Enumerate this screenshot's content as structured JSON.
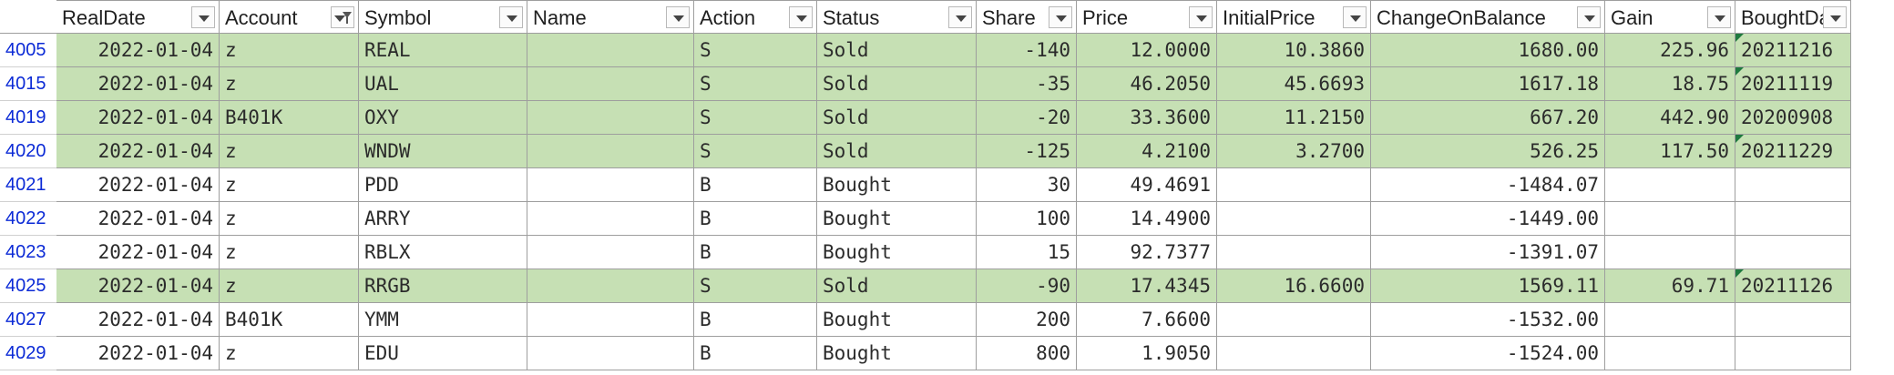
{
  "columns": [
    "RealDate",
    "Account",
    "Symbol",
    "Name",
    "Action",
    "Status",
    "Share",
    "Price",
    "InitialPrice",
    "ChangeOnBalance",
    "Gain",
    "BoughtDate"
  ],
  "rows": [
    {
      "num": "4005",
      "sold": true,
      "c": [
        "2022-01-04",
        "z",
        "REAL",
        "",
        "S",
        "Sold",
        "-140",
        "12.0000",
        "10.3860",
        "1680.00",
        "225.96",
        "20211216"
      ],
      "tri": true
    },
    {
      "num": "4015",
      "sold": true,
      "c": [
        "2022-01-04",
        "z",
        "UAL",
        "",
        "S",
        "Sold",
        "-35",
        "46.2050",
        "45.6693",
        "1617.18",
        "18.75",
        "20211119"
      ],
      "tri": true
    },
    {
      "num": "4019",
      "sold": true,
      "c": [
        "2022-01-04",
        "B401K",
        "OXY",
        "",
        "S",
        "Sold",
        "-20",
        "33.3600",
        "11.2150",
        "667.20",
        "442.90",
        "20200908"
      ],
      "tri": false
    },
    {
      "num": "4020",
      "sold": true,
      "c": [
        "2022-01-04",
        "z",
        "WNDW",
        "",
        "S",
        "Sold",
        "-125",
        "4.2100",
        "3.2700",
        "526.25",
        "117.50",
        "20211229"
      ],
      "tri": true
    },
    {
      "num": "4021",
      "sold": false,
      "c": [
        "2022-01-04",
        "z",
        "PDD",
        "",
        "B",
        "Bought",
        "30",
        "49.4691",
        "",
        "-1484.07",
        "",
        ""
      ],
      "tri": false
    },
    {
      "num": "4022",
      "sold": false,
      "c": [
        "2022-01-04",
        "z",
        "ARRY",
        "",
        "B",
        "Bought",
        "100",
        "14.4900",
        "",
        "-1449.00",
        "",
        ""
      ],
      "tri": false
    },
    {
      "num": "4023",
      "sold": false,
      "c": [
        "2022-01-04",
        "z",
        "RBLX",
        "",
        "B",
        "Bought",
        "15",
        "92.7377",
        "",
        "-1391.07",
        "",
        ""
      ],
      "tri": false
    },
    {
      "num": "4025",
      "sold": true,
      "c": [
        "2022-01-04",
        "z",
        "RRGB",
        "",
        "S",
        "Sold",
        "-90",
        "17.4345",
        "16.6600",
        "1569.11",
        "69.71",
        "20211126"
      ],
      "tri": true
    },
    {
      "num": "4027",
      "sold": false,
      "c": [
        "2022-01-04",
        "B401K",
        "YMM",
        "",
        "B",
        "Bought",
        "200",
        "7.6600",
        "",
        "-1532.00",
        "",
        ""
      ],
      "tri": false
    },
    {
      "num": "4029",
      "sold": false,
      "c": [
        "2022-01-04",
        "z",
        "EDU",
        "",
        "B",
        "Bought",
        "800",
        "1.9050",
        "",
        "-1524.00",
        "",
        ""
      ],
      "tri": false
    }
  ],
  "filtered_column": "Account"
}
